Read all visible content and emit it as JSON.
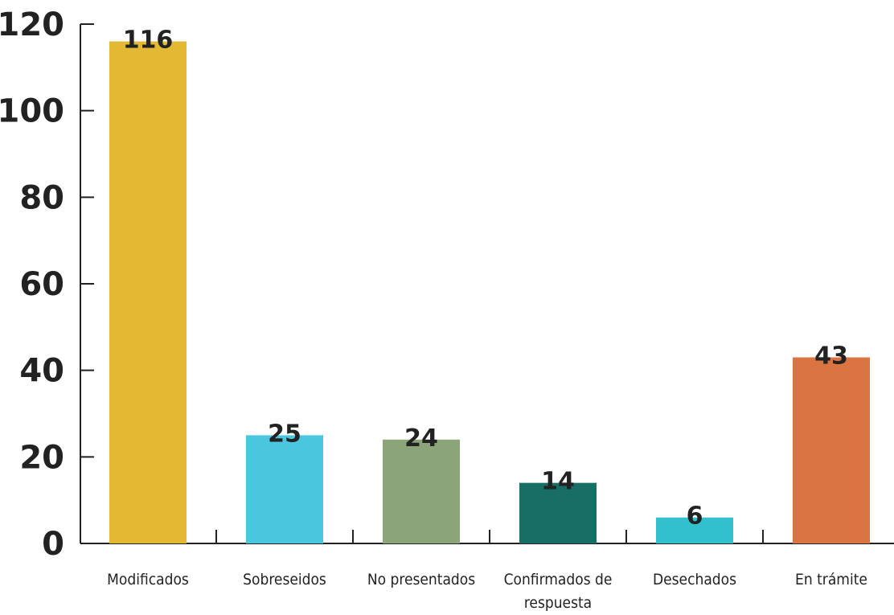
{
  "chart_data": {
    "type": "bar",
    "categories": [
      "Modificados",
      "Sobreseidos",
      "No presentados",
      "Confirmados de respuesta",
      "Desechados",
      "En trámite"
    ],
    "category_lines": [
      [
        "Modificados"
      ],
      [
        "Sobreseidos"
      ],
      [
        "No presentados"
      ],
      [
        "Confirmados de",
        "respuesta"
      ],
      [
        "Desechados"
      ],
      [
        "En trámite"
      ]
    ],
    "values": [
      116,
      25,
      24,
      14,
      6,
      43
    ],
    "data_labels": [
      "116",
      "25",
      "24",
      "14",
      "6",
      "43"
    ],
    "colors": [
      "#E3B934",
      "#4AC6DF",
      "#8BA47A",
      "#166E64",
      "#31C0CE",
      "#DA7441"
    ],
    "yticks": [
      "0",
      "20",
      "40",
      "60",
      "80",
      "100",
      "120"
    ],
    "ylim": [
      0,
      120
    ],
    "title": "",
    "xlabel": "",
    "ylabel": "",
    "grid": false,
    "legend": "none"
  }
}
